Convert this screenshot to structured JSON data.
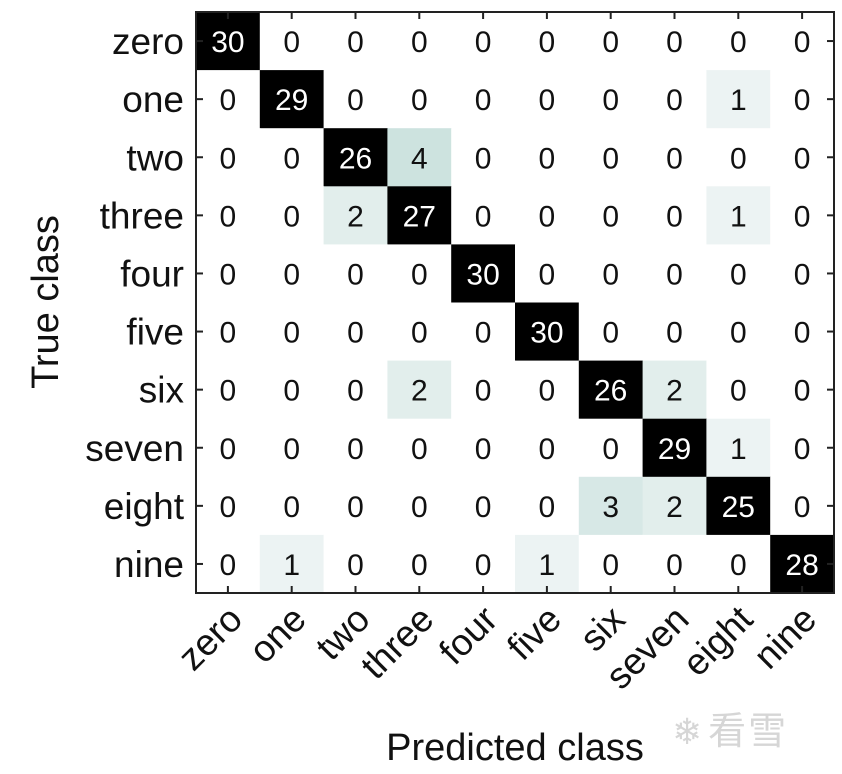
{
  "chart_data": {
    "type": "heatmap",
    "xlabel": "Predicted class",
    "ylabel": "True class",
    "x_categories": [
      "zero",
      "one",
      "two",
      "three",
      "four",
      "five",
      "six",
      "seven",
      "eight",
      "nine"
    ],
    "y_categories": [
      "zero",
      "one",
      "two",
      "three",
      "four",
      "five",
      "six",
      "seven",
      "eight",
      "nine"
    ],
    "values": [
      [
        30,
        0,
        0,
        0,
        0,
        0,
        0,
        0,
        0,
        0
      ],
      [
        0,
        29,
        0,
        0,
        0,
        0,
        0,
        0,
        1,
        0
      ],
      [
        0,
        0,
        26,
        4,
        0,
        0,
        0,
        0,
        0,
        0
      ],
      [
        0,
        0,
        2,
        27,
        0,
        0,
        0,
        0,
        1,
        0
      ],
      [
        0,
        0,
        0,
        0,
        30,
        0,
        0,
        0,
        0,
        0
      ],
      [
        0,
        0,
        0,
        0,
        0,
        30,
        0,
        0,
        0,
        0
      ],
      [
        0,
        0,
        0,
        2,
        0,
        0,
        26,
        2,
        0,
        0
      ],
      [
        0,
        0,
        0,
        0,
        0,
        0,
        0,
        29,
        1,
        0
      ],
      [
        0,
        0,
        0,
        0,
        0,
        0,
        3,
        2,
        25,
        0
      ],
      [
        0,
        1,
        0,
        0,
        0,
        1,
        0,
        0,
        0,
        28
      ]
    ],
    "value_range": [
      0,
      30
    ],
    "colormap": {
      "low": "#ffffff",
      "mid": "#c8e0dc",
      "high": "#000000"
    }
  },
  "watermark": {
    "icon": "snowflake-icon",
    "text": "看雪"
  }
}
